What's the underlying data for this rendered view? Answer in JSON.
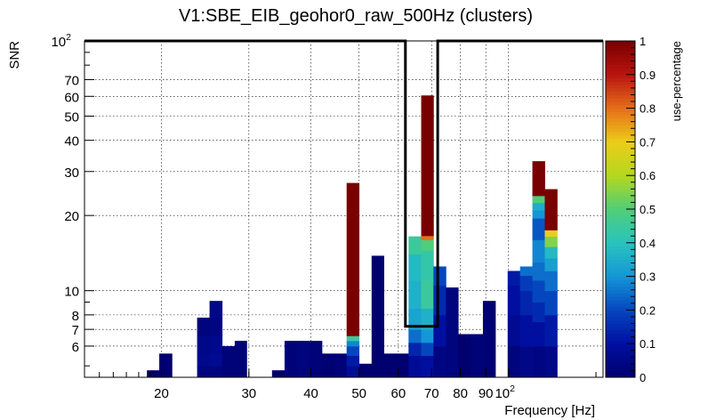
{
  "chart_data": {
    "type": "heatmap",
    "title": "V1:SBE_EIB_geohor0_raw_500Hz (clusters)",
    "xlabel": "Frequency [Hz]",
    "ylabel": "SNR",
    "colorbar_label": "use-percentage",
    "x_scale": "log",
    "y_scale": "log",
    "xlim": [
      14,
      155
    ],
    "ylim": [
      4.5,
      100
    ],
    "zlim": [
      0,
      1
    ],
    "grid": true,
    "x_ticks": [
      {
        "value": 20,
        "label": "20"
      },
      {
        "value": 30,
        "label": "30"
      },
      {
        "value": 40,
        "label": "40"
      },
      {
        "value": 50,
        "label": "50"
      },
      {
        "value": 60,
        "label": "60"
      },
      {
        "value": 70,
        "label": "70"
      },
      {
        "value": 80,
        "label": "80"
      },
      {
        "value": 90,
        "label": "90"
      },
      {
        "value": 100,
        "label": "10",
        "sup": "2"
      }
    ],
    "y_ticks": [
      {
        "value": 6,
        "label": "6"
      },
      {
        "value": 7,
        "label": "7"
      },
      {
        "value": 8,
        "label": "8"
      },
      {
        "value": 10,
        "label": "10"
      },
      {
        "value": 20,
        "label": "20"
      },
      {
        "value": 30,
        "label": "30"
      },
      {
        "value": 40,
        "label": "40"
      },
      {
        "value": 50,
        "label": "50"
      },
      {
        "value": 60,
        "label": "60"
      },
      {
        "value": 70,
        "label": "70"
      },
      {
        "value": 100,
        "label": "10",
        "sup": "2"
      }
    ],
    "colorbar_ticks": [
      {
        "value": 0,
        "label": "0"
      },
      {
        "value": 0.1,
        "label": "0.1"
      },
      {
        "value": 0.2,
        "label": "0.2"
      },
      {
        "value": 0.3,
        "label": "0.3"
      },
      {
        "value": 0.4,
        "label": "0.4"
      },
      {
        "value": 0.5,
        "label": "0.5"
      },
      {
        "value": 0.6,
        "label": "0.6"
      },
      {
        "value": 0.7,
        "label": "0.7"
      },
      {
        "value": 0.8,
        "label": "0.8"
      },
      {
        "value": 0.9,
        "label": "0.9"
      },
      {
        "value": 1,
        "label": "1"
      }
    ],
    "threshold_line": {
      "segments": [
        [
          [
            14,
            100
          ],
          [
            62,
            100
          ],
          [
            62,
            7.2
          ],
          [
            72,
            7.2
          ],
          [
            72,
            100
          ],
          [
            155,
            100
          ]
        ]
      ]
    },
    "columns": [
      {
        "f0": 18.7,
        "f1": 19.8,
        "segs": [
          [
            4.5,
            4.8,
            0.0
          ]
        ]
      },
      {
        "f0": 19.8,
        "f1": 21.0,
        "segs": [
          [
            4.5,
            5.6,
            0.0
          ]
        ]
      },
      {
        "f0": 23.6,
        "f1": 25.0,
        "segs": [
          [
            4.5,
            5.0,
            0.03
          ],
          [
            5.0,
            5.6,
            0.06
          ],
          [
            5.6,
            6.6,
            0.05
          ],
          [
            6.6,
            7.8,
            0.03
          ]
        ]
      },
      {
        "f0": 25.0,
        "f1": 26.5,
        "segs": [
          [
            4.5,
            5.0,
            0.03
          ],
          [
            5.0,
            5.6,
            0.07
          ],
          [
            5.6,
            6.6,
            0.06
          ],
          [
            6.6,
            7.8,
            0.04
          ],
          [
            7.8,
            9.1,
            0.05
          ]
        ]
      },
      {
        "f0": 26.5,
        "f1": 28.1,
        "segs": [
          [
            4.5,
            6.0,
            0.02
          ]
        ]
      },
      {
        "f0": 28.1,
        "f1": 29.7,
        "segs": [
          [
            4.5,
            6.3,
            0.02
          ]
        ]
      },
      {
        "f0": 33.4,
        "f1": 35.4,
        "segs": [
          [
            4.5,
            4.8,
            0.0
          ]
        ]
      },
      {
        "f0": 35.4,
        "f1": 37.5,
        "segs": [
          [
            4.5,
            6.3,
            0.02
          ]
        ]
      },
      {
        "f0": 37.5,
        "f1": 39.7,
        "segs": [
          [
            4.5,
            6.3,
            0.03
          ]
        ]
      },
      {
        "f0": 39.7,
        "f1": 42.1,
        "segs": [
          [
            4.5,
            6.3,
            0.02
          ]
        ]
      },
      {
        "f0": 42.1,
        "f1": 44.6,
        "segs": [
          [
            4.5,
            5.6,
            0.01
          ]
        ]
      },
      {
        "f0": 44.6,
        "f1": 47.2,
        "segs": [
          [
            4.5,
            5.6,
            0.02
          ]
        ]
      },
      {
        "f0": 47.2,
        "f1": 50.0,
        "segs": [
          [
            4.5,
            5.0,
            0.08
          ],
          [
            5.0,
            5.5,
            0.12
          ],
          [
            5.5,
            6.0,
            0.2
          ],
          [
            6.0,
            6.3,
            0.28
          ],
          [
            6.3,
            6.6,
            0.45
          ],
          [
            6.6,
            27.0,
            1.0
          ]
        ]
      },
      {
        "f0": 50.0,
        "f1": 53.0,
        "segs": [
          [
            4.5,
            5.1,
            0.0
          ]
        ]
      },
      {
        "f0": 53.0,
        "f1": 56.1,
        "segs": [
          [
            4.5,
            13.8,
            0.0
          ]
        ]
      },
      {
        "f0": 56.1,
        "f1": 59.4,
        "segs": [
          [
            4.5,
            5.6,
            0.0
          ]
        ]
      },
      {
        "f0": 59.4,
        "f1": 62.9,
        "segs": [
          [
            4.5,
            5.6,
            0.0
          ]
        ]
      },
      {
        "f0": 62.9,
        "f1": 66.7,
        "segs": [
          [
            4.5,
            5.5,
            0.08
          ],
          [
            5.5,
            6.2,
            0.14
          ],
          [
            6.2,
            7.0,
            0.25
          ],
          [
            7.0,
            8.5,
            0.33
          ],
          [
            8.5,
            11.0,
            0.36
          ],
          [
            11.0,
            14.0,
            0.38
          ],
          [
            14.0,
            16.5,
            0.45
          ]
        ]
      },
      {
        "f0": 66.7,
        "f1": 70.6,
        "segs": [
          [
            4.5,
            5.5,
            0.1
          ],
          [
            5.5,
            6.2,
            0.2
          ],
          [
            6.2,
            7.0,
            0.3
          ],
          [
            7.0,
            8.5,
            0.36
          ],
          [
            8.5,
            11.0,
            0.45
          ],
          [
            11.0,
            14.5,
            0.43
          ],
          [
            14.5,
            16.0,
            0.5
          ],
          [
            16.0,
            16.6,
            0.8
          ],
          [
            16.6,
            60.5,
            1.0
          ]
        ]
      },
      {
        "f0": 70.6,
        "f1": 74.8,
        "segs": [
          [
            4.5,
            6.0,
            0.04
          ],
          [
            6.0,
            8.0,
            0.1
          ],
          [
            8.0,
            10.5,
            0.15
          ],
          [
            10.5,
            12.5,
            0.2
          ]
        ]
      },
      {
        "f0": 74.8,
        "f1": 79.2,
        "segs": [
          [
            4.5,
            10.3,
            0.03
          ]
        ]
      },
      {
        "f0": 79.2,
        "f1": 83.9,
        "segs": [
          [
            4.5,
            6.7,
            0.0
          ]
        ]
      },
      {
        "f0": 83.9,
        "f1": 88.8,
        "segs": [
          [
            4.5,
            6.7,
            0.02
          ]
        ]
      },
      {
        "f0": 88.8,
        "f1": 94.1,
        "segs": [
          [
            4.5,
            9.1,
            0.01
          ]
        ]
      },
      {
        "f0": 99.6,
        "f1": 105.5,
        "segs": [
          [
            4.5,
            6.0,
            0.03
          ],
          [
            6.0,
            8.0,
            0.07
          ],
          [
            8.0,
            10.5,
            0.1
          ],
          [
            10.5,
            12.0,
            0.12
          ]
        ]
      },
      {
        "f0": 105.5,
        "f1": 111.7,
        "segs": [
          [
            4.5,
            6.0,
            0.05
          ],
          [
            6.0,
            8.0,
            0.1
          ],
          [
            8.0,
            10.0,
            0.14
          ],
          [
            10.0,
            11.5,
            0.18
          ],
          [
            11.5,
            12.5,
            0.25
          ]
        ]
      },
      {
        "f0": 111.7,
        "f1": 118.3,
        "segs": [
          [
            4.5,
            6.0,
            0.04
          ],
          [
            6.0,
            7.5,
            0.1
          ],
          [
            7.5,
            9.0,
            0.15
          ],
          [
            9.0,
            11.0,
            0.2
          ],
          [
            11.0,
            13.0,
            0.25
          ],
          [
            13.0,
            16.0,
            0.28
          ],
          [
            16.0,
            19.5,
            0.22
          ],
          [
            19.5,
            21.0,
            0.3
          ],
          [
            21.0,
            22.5,
            0.35
          ],
          [
            22.5,
            24.0,
            0.5
          ],
          [
            24.0,
            33.0,
            1.0
          ]
        ]
      },
      {
        "f0": 118.3,
        "f1": 125.3,
        "segs": [
          [
            4.5,
            6.0,
            0.05
          ],
          [
            6.0,
            8.0,
            0.12
          ],
          [
            8.0,
            10.0,
            0.2
          ],
          [
            10.0,
            12.0,
            0.25
          ],
          [
            12.0,
            13.5,
            0.32
          ],
          [
            13.5,
            15.0,
            0.38
          ],
          [
            15.0,
            16.5,
            0.55
          ],
          [
            16.5,
            17.5,
            0.7
          ],
          [
            17.5,
            25.5,
            1.0
          ]
        ]
      }
    ]
  }
}
